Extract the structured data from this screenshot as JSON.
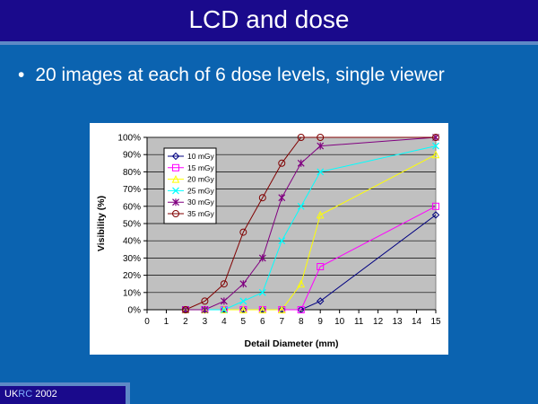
{
  "slide": {
    "title": "LCD and dose",
    "bullet_marker": "•",
    "bullet_text": "20 images at each of 6 dose levels, single viewer"
  },
  "footer": {
    "org_part1": "UK",
    "org_part2": "RC",
    "year": "2002"
  },
  "colors": {
    "background": "#0b63b0",
    "title_bar": "#1a0a8c",
    "plot_area": "#c0c0c0"
  },
  "chart_data": {
    "type": "line",
    "xlabel": "Detail Diameter (mm)",
    "ylabel": "Visibility (%)",
    "xlim": [
      0,
      15
    ],
    "ylim": [
      0,
      100
    ],
    "x_ticks": [
      0,
      1,
      2,
      3,
      4,
      5,
      6,
      7,
      8,
      9,
      10,
      11,
      12,
      13,
      14,
      15
    ],
    "y_ticks": [
      0,
      10,
      20,
      30,
      40,
      50,
      60,
      70,
      80,
      90,
      100
    ],
    "y_tick_suffix": "%",
    "grid": true,
    "legend_position": "top-left",
    "series": [
      {
        "name": "10 mGy",
        "color": "#000080",
        "marker": "diamond",
        "x": [
          2,
          3,
          4,
          5,
          6,
          7,
          8,
          9,
          15
        ],
        "y": [
          0,
          0,
          0,
          0,
          0,
          0,
          0,
          5,
          55
        ]
      },
      {
        "name": "15 mGy",
        "color": "#ff00ff",
        "marker": "square",
        "x": [
          2,
          3,
          4,
          5,
          6,
          7,
          8,
          9,
          15
        ],
        "y": [
          0,
          0,
          0,
          0,
          0,
          0,
          0,
          25,
          60
        ]
      },
      {
        "name": "20 mGy",
        "color": "#ffff00",
        "marker": "triangle",
        "x": [
          2,
          3,
          4,
          5,
          6,
          7,
          8,
          9,
          15
        ],
        "y": [
          0,
          0,
          0,
          0,
          0,
          0,
          15,
          55,
          90
        ]
      },
      {
        "name": "25 mGy",
        "color": "#00ffff",
        "marker": "x",
        "x": [
          2,
          3,
          4,
          5,
          6,
          7,
          8,
          9,
          15
        ],
        "y": [
          0,
          0,
          0,
          5,
          10,
          40,
          60,
          80,
          95
        ]
      },
      {
        "name": "30 mGy",
        "color": "#800080",
        "marker": "star",
        "x": [
          2,
          3,
          4,
          5,
          6,
          7,
          8,
          9,
          15
        ],
        "y": [
          0,
          0,
          5,
          15,
          30,
          65,
          85,
          95,
          100
        ]
      },
      {
        "name": "35 mGy",
        "color": "#800000",
        "marker": "circle",
        "x": [
          2,
          3,
          4,
          5,
          6,
          7,
          8,
          9,
          15
        ],
        "y": [
          0,
          5,
          15,
          45,
          65,
          85,
          100,
          100,
          100
        ]
      }
    ]
  }
}
